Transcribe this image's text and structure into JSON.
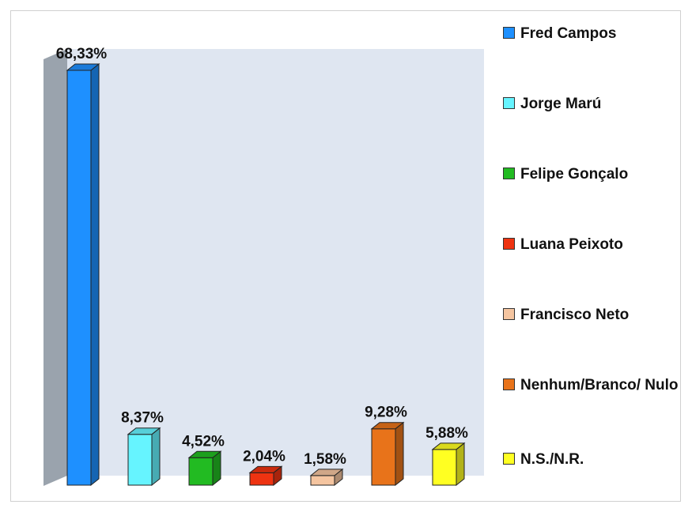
{
  "chart_data": {
    "type": "bar",
    "style": "3d-column",
    "categories": [
      "Fred Campos",
      "Jorge Marú",
      "Felipe Gonçalo",
      "Luana Peixoto",
      "Francisco Neto",
      "Nenhum/Branco/Nulo",
      "N.S./N.R."
    ],
    "values": [
      68.33,
      8.37,
      4.52,
      2.04,
      1.58,
      9.28,
      5.88
    ],
    "data_labels": [
      "68,33%",
      "8,37%",
      "4,52%",
      "2,04%",
      "1,58%",
      "9,28%",
      "5,88%"
    ],
    "colors": [
      "#1e90ff",
      "#66f4ff",
      "#22bb22",
      "#ee3311",
      "#f5c5a0",
      "#e8731a",
      "#ffff22"
    ],
    "ylim": [
      0,
      68.33
    ],
    "title": "",
    "xlabel": "",
    "ylabel": "",
    "grid": false,
    "legend": {
      "position": "right",
      "entries": [
        "Fred Campos",
        "Jorge Marú",
        "Felipe Gonçalo",
        "Luana Peixoto",
        "Francisco Neto",
        "Nenhum/Branco/ Nulo",
        "N.S./N.R."
      ]
    },
    "wall_color": "#dfe6f1",
    "side_wall_color": "#9aa3ad"
  }
}
